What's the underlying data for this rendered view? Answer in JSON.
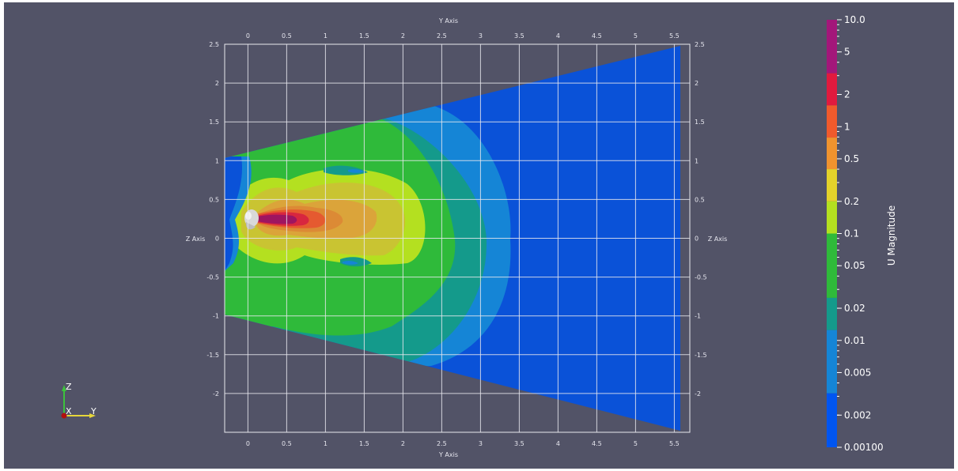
{
  "view": {
    "background": "#525367",
    "y_axis": {
      "title": "Y Axis",
      "ticks": [
        "0",
        "0.5",
        "1",
        "1.5",
        "2",
        "2.5",
        "3",
        "3.5",
        "4",
        "4.5",
        "5",
        "5.5"
      ],
      "range": [
        -0.3,
        5.7
      ]
    },
    "z_axis": {
      "title": "Z Axis",
      "ticks": [
        "2.5",
        "2",
        "1.5",
        "1",
        "0.5",
        "0",
        "-0.5",
        "-1",
        "-1.5",
        "-2"
      ],
      "range": [
        -2.5,
        2.5
      ]
    },
    "colorbar": {
      "title": "U Magnitude",
      "labels": [
        "10.0",
        "5",
        "2",
        "1",
        "0.5",
        "0.2",
        "0.1",
        "0.05",
        "0.02",
        "0.01",
        "0.005",
        "0.002",
        "0.00100"
      ],
      "scale": "log",
      "range": [
        0.001,
        10.0
      ],
      "bands": [
        {
          "color": "#a3177a"
        },
        {
          "color": "#e11a3e"
        },
        {
          "color": "#f05a2c"
        },
        {
          "color": "#f0932e"
        },
        {
          "color": "#e4d22a"
        },
        {
          "color": "#b4e020"
        },
        {
          "color": "#2fba3a"
        },
        {
          "color": "#149a8b"
        },
        {
          "color": "#1585d6"
        },
        {
          "color": "#0055f0"
        }
      ]
    },
    "orientation_axes": {
      "z_label": "Z",
      "x_label": "X",
      "y_label": "Y",
      "z_color": "#3cc23c",
      "y_color": "#e6d63a",
      "x_color": "#b01010"
    },
    "field_colors": {
      "far": "#0a52d8",
      "blue2": "#1585d6",
      "teal": "#149a8b",
      "green": "#2fba3a",
      "yellow_green": "#b4e020",
      "yellow": "#c9c432",
      "orange_light": "#dba43a",
      "orange": "#dc8a35",
      "red_orange": "#e55a30",
      "red": "#d8263f",
      "magenta": "#9e1560",
      "head": "#d9d9d9"
    }
  }
}
